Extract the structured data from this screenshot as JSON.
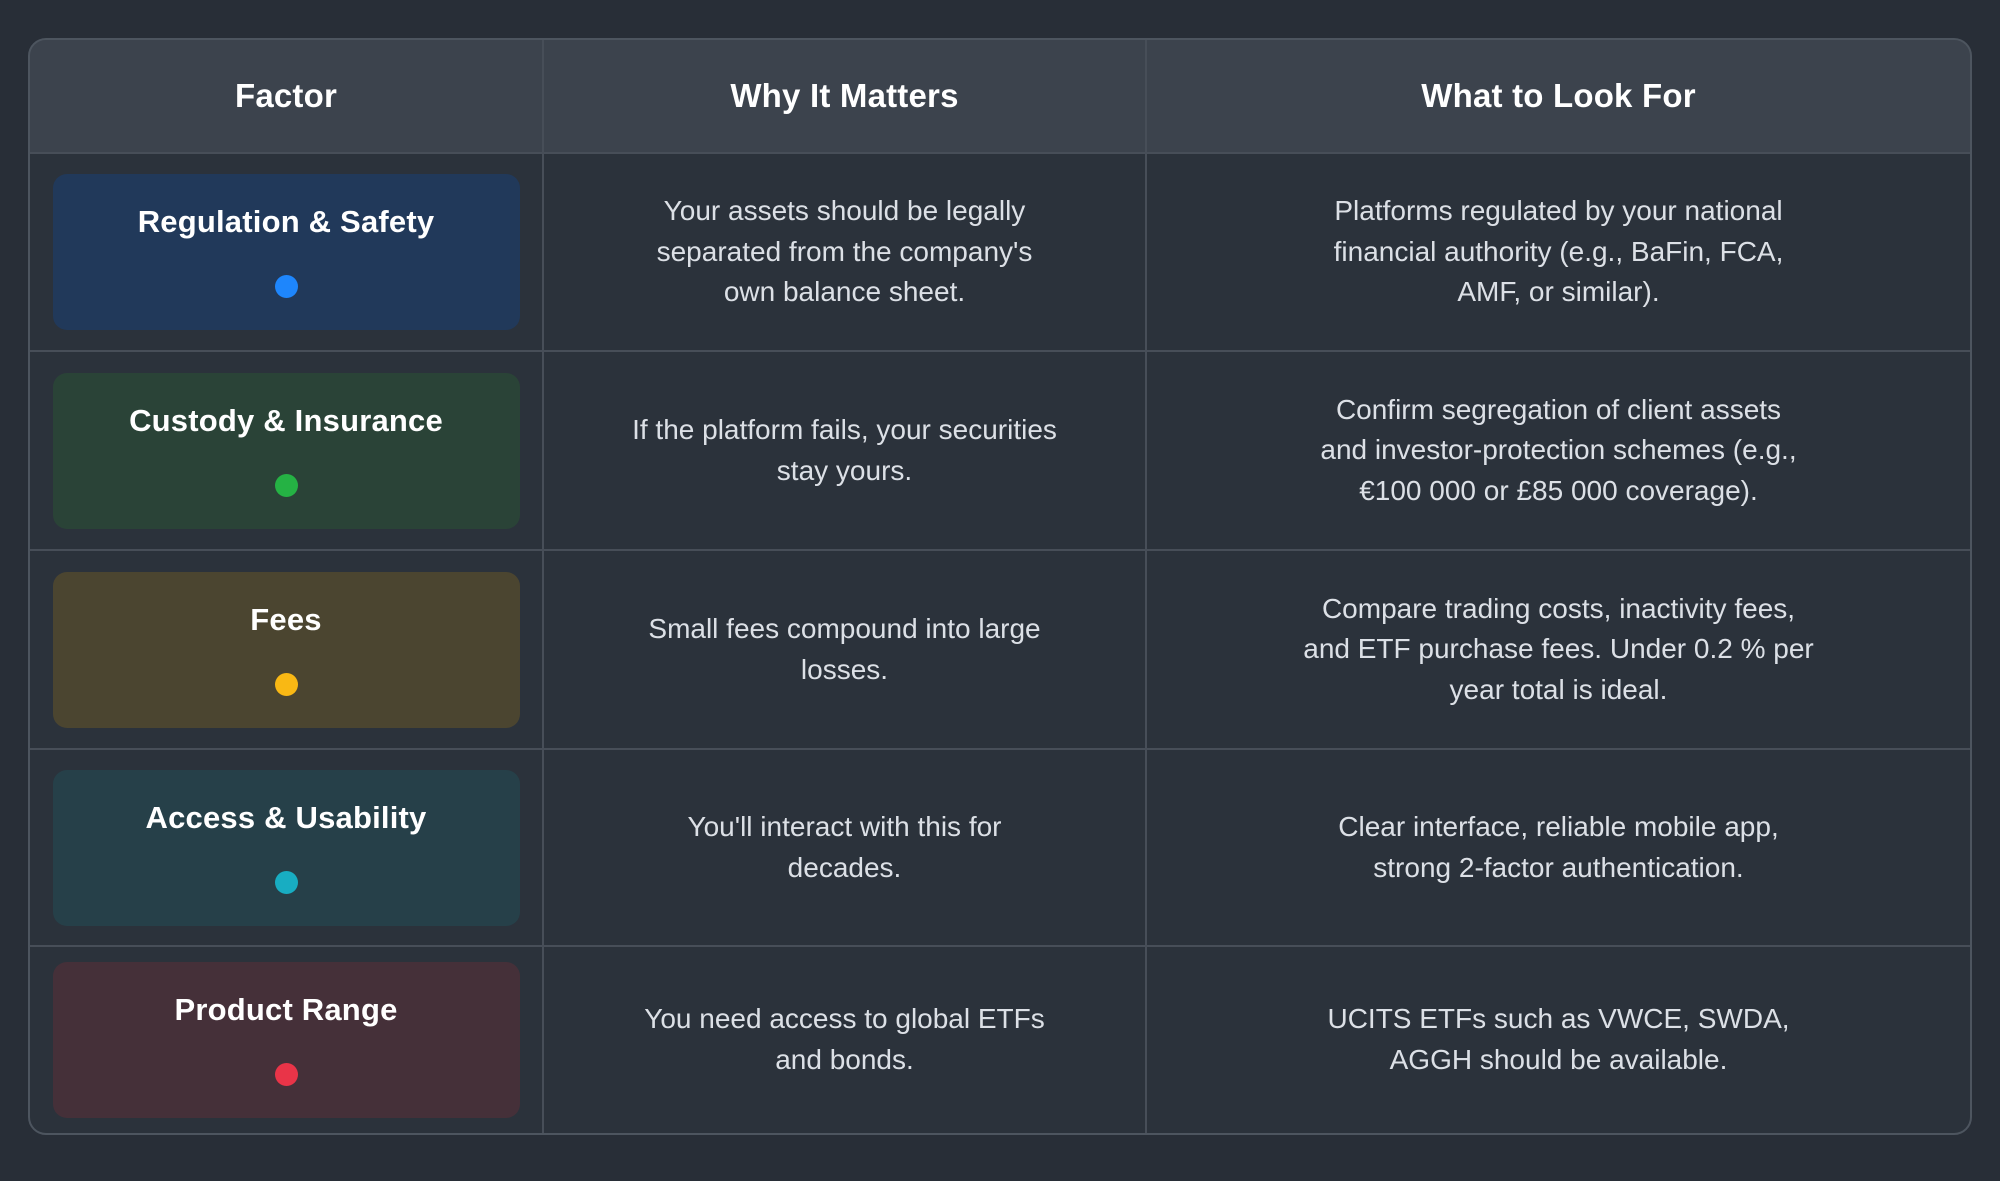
{
  "theme": {
    "page_bg": "#282e37",
    "cell_bg": "#2b323b",
    "header_bg": "#3c434d",
    "grid_line": "#474e58",
    "outer_border": "#4d555f",
    "header_text": "#ffffff",
    "body_text": "#dce0e6"
  },
  "chart_data": {
    "type": "table",
    "columns": [
      "Factor",
      "Why It Matters",
      "What to Look For"
    ],
    "rows": [
      {
        "factor": "Regulation & Safety",
        "badge_bg": "#21395a",
        "dot_color": "#1e86fc",
        "why_it_matters": "Your assets should be legally\nseparated from the company's\nown balance sheet.",
        "what_to_look_for": "Platforms regulated by your national\nfinancial authority (e.g., BaFin, FCA,\nAMF, or similar)."
      },
      {
        "factor": "Custody & Insurance",
        "badge_bg": "#2a4337",
        "dot_color": "#25b244",
        "why_it_matters": "If the platform fails, your securities\nstay yours.",
        "what_to_look_for": "Confirm segregation of client assets\nand investor-protection schemes (e.g.,\n€100 000 or £85 000 coverage)."
      },
      {
        "factor": "Fees",
        "badge_bg": "#4b4530",
        "dot_color": "#f9b814",
        "why_it_matters": "Small fees compound into large\nlosses.",
        "what_to_look_for": "Compare trading costs, inactivity fees,\nand ETF purchase fees. Under 0.2 % per\nyear total is ideal."
      },
      {
        "factor": "Access & Usability",
        "badge_bg": "#264049",
        "dot_color": "#18adc2",
        "why_it_matters": "You'll interact with this for\ndecades.",
        "what_to_look_for": "Clear interface, reliable mobile app,\nstrong 2-factor authentication."
      },
      {
        "factor": "Product Range",
        "badge_bg": "#453039",
        "dot_color": "#e93448",
        "why_it_matters": "You need access to global ETFs\nand bonds.",
        "what_to_look_for": "UCITS ETFs such as VWCE, SWDA,\nAGGH should be available."
      }
    ]
  }
}
